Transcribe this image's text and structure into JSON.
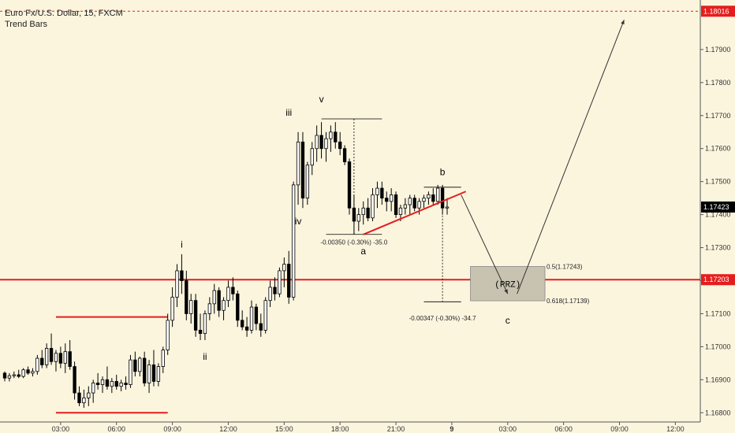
{
  "header": {
    "symbol_line": "Euro Fx/U.S. Dollar, 15, FXCM",
    "study_line": "Trend Bars"
  },
  "colors": {
    "background": "#fcf5de",
    "candle_up": "#ffffff",
    "candle_down": "#000000",
    "price_red": "#e41e1e",
    "axis_text": "#333333",
    "box_fill": "#c8c3b0",
    "current_price_bg": "#000000"
  },
  "chart_data": {
    "type": "candlestick",
    "title": "Euro Fx/U.S. Dollar, 15, FXCM",
    "study": "Trend Bars",
    "y_axis": {
      "ticks": [
        "1.16800",
        "1.16900",
        "1.17000",
        "1.17100",
        "1.17200",
        "1.17300",
        "1.17400",
        "1.17500",
        "1.17600",
        "1.17700",
        "1.17800",
        "1.17900"
      ],
      "tick_values": [
        1.168,
        1.169,
        1.17,
        1.171,
        1.172,
        1.173,
        1.174,
        1.175,
        1.176,
        1.177,
        1.178,
        1.179
      ],
      "range": [
        1.16772,
        1.1805
      ]
    },
    "x_axis": {
      "ticks": [
        "03:00",
        "06:00",
        "09:00",
        "12:00",
        "15:00",
        "18:00",
        "21:00",
        "9",
        "03:00",
        "06:00",
        "09:00",
        "12:00"
      ],
      "tick_bar_index": [
        12,
        24,
        36,
        48,
        60,
        72,
        84,
        96,
        108,
        120,
        132,
        144
      ],
      "bars_visible": 148
    },
    "price_labels": [
      {
        "text": "1.18016",
        "value": 1.18016,
        "style": "red"
      },
      {
        "text": "1.17423",
        "value": 1.17423,
        "style": "current"
      },
      {
        "text": "1.17203",
        "value": 1.17203,
        "style": "red"
      }
    ],
    "candles": [
      [
        1.1692,
        1.16925,
        1.16895,
        1.16905
      ],
      [
        1.16905,
        1.1692,
        1.16895,
        1.16912
      ],
      [
        1.16912,
        1.16925,
        1.16905,
        1.16915
      ],
      [
        1.16915,
        1.1693,
        1.16905,
        1.1691
      ],
      [
        1.1691,
        1.16935,
        1.16905,
        1.1693
      ],
      [
        1.1693,
        1.1694,
        1.16915,
        1.1692
      ],
      [
        1.1692,
        1.16935,
        1.1691,
        1.16925
      ],
      [
        1.16925,
        1.16975,
        1.16915,
        1.16965
      ],
      [
        1.16965,
        1.1699,
        1.16935,
        1.16945
      ],
      [
        1.16945,
        1.1701,
        1.16935,
        1.16995
      ],
      [
        1.16995,
        1.1704,
        1.16945,
        1.16955
      ],
      [
        1.16955,
        1.1699,
        1.16925,
        1.1698
      ],
      [
        1.1698,
        1.17,
        1.16935,
        1.1695
      ],
      [
        1.1695,
        1.1701,
        1.1692,
        1.16985
      ],
      [
        1.16985,
        1.1702,
        1.1693,
        1.1694
      ],
      [
        1.1694,
        1.16955,
        1.1684,
        1.1686
      ],
      [
        1.1686,
        1.1688,
        1.1682,
        1.1683
      ],
      [
        1.1683,
        1.1687,
        1.16815,
        1.16845
      ],
      [
        1.16845,
        1.1688,
        1.1682,
        1.1686
      ],
      [
        1.1686,
        1.169,
        1.1683,
        1.1689
      ],
      [
        1.1689,
        1.1692,
        1.1687,
        1.16885
      ],
      [
        1.16885,
        1.1691,
        1.1686,
        1.169
      ],
      [
        1.169,
        1.1694,
        1.1687,
        1.1688
      ],
      [
        1.1688,
        1.16905,
        1.1686,
        1.16895
      ],
      [
        1.16895,
        1.16915,
        1.1687,
        1.1688
      ],
      [
        1.1688,
        1.169,
        1.16865,
        1.1689
      ],
      [
        1.1689,
        1.1691,
        1.1687,
        1.16885
      ],
      [
        1.16885,
        1.16975,
        1.16875,
        1.1696
      ],
      [
        1.1696,
        1.16985,
        1.1691,
        1.16925
      ],
      [
        1.16925,
        1.1697,
        1.1691,
        1.16965
      ],
      [
        1.16965,
        1.16985,
        1.1688,
        1.1689
      ],
      [
        1.1689,
        1.1696,
        1.1686,
        1.16945
      ],
      [
        1.16945,
        1.1699,
        1.1688,
        1.16895
      ],
      [
        1.16895,
        1.1695,
        1.1688,
        1.1694
      ],
      [
        1.1694,
        1.17,
        1.1692,
        1.1699
      ],
      [
        1.1699,
        1.171,
        1.16975,
        1.1708
      ],
      [
        1.1708,
        1.1718,
        1.1706,
        1.1715
      ],
      [
        1.1715,
        1.1725,
        1.1712,
        1.1723
      ],
      [
        1.1723,
        1.1728,
        1.1716,
        1.172
      ],
      [
        1.172,
        1.1723,
        1.1708,
        1.171
      ],
      [
        1.171,
        1.1716,
        1.1707,
        1.1714
      ],
      [
        1.1714,
        1.1716,
        1.1703,
        1.1705
      ],
      [
        1.1705,
        1.171,
        1.1702,
        1.1704
      ],
      [
        1.1704,
        1.1711,
        1.1702,
        1.171
      ],
      [
        1.171,
        1.1715,
        1.1708,
        1.1713
      ],
      [
        1.1713,
        1.1719,
        1.171,
        1.1717
      ],
      [
        1.1717,
        1.1718,
        1.1709,
        1.1711
      ],
      [
        1.1711,
        1.1715,
        1.1708,
        1.1714
      ],
      [
        1.1714,
        1.172,
        1.1712,
        1.1718
      ],
      [
        1.1718,
        1.1721,
        1.1714,
        1.1716
      ],
      [
        1.1716,
        1.1717,
        1.1706,
        1.1708
      ],
      [
        1.1708,
        1.1711,
        1.1705,
        1.1706
      ],
      [
        1.1706,
        1.1709,
        1.1703,
        1.1705
      ],
      [
        1.1705,
        1.1714,
        1.1704,
        1.1712
      ],
      [
        1.1712,
        1.1713,
        1.1705,
        1.1707
      ],
      [
        1.1707,
        1.171,
        1.1703,
        1.1705
      ],
      [
        1.1705,
        1.1715,
        1.1704,
        1.1714
      ],
      [
        1.1714,
        1.172,
        1.1712,
        1.1718
      ],
      [
        1.1718,
        1.1721,
        1.1714,
        1.1716
      ],
      [
        1.1716,
        1.1724,
        1.1715,
        1.1723
      ],
      [
        1.1723,
        1.1727,
        1.1718,
        1.1725
      ],
      [
        1.1725,
        1.1729,
        1.1713,
        1.1715
      ],
      [
        1.1715,
        1.175,
        1.1714,
        1.1749
      ],
      [
        1.1749,
        1.1765,
        1.1743,
        1.1762
      ],
      [
        1.1762,
        1.1765,
        1.1742,
        1.1745
      ],
      [
        1.1745,
        1.1756,
        1.1743,
        1.1755
      ],
      [
        1.1755,
        1.1762,
        1.1752,
        1.176
      ],
      [
        1.176,
        1.1767,
        1.1756,
        1.1764
      ],
      [
        1.1764,
        1.1768,
        1.1757,
        1.176
      ],
      [
        1.176,
        1.1765,
        1.1756,
        1.1763
      ],
      [
        1.1763,
        1.1767,
        1.1759,
        1.1765
      ],
      [
        1.1765,
        1.1768,
        1.176,
        1.1762
      ],
      [
        1.1762,
        1.1765,
        1.1758,
        1.176
      ],
      [
        1.176,
        1.1761,
        1.1755,
        1.1756
      ],
      [
        1.1756,
        1.1757,
        1.174,
        1.1742
      ],
      [
        1.1742,
        1.1746,
        1.1734,
        1.1738
      ],
      [
        1.1738,
        1.1742,
        1.1735,
        1.174
      ],
      [
        1.174,
        1.1744,
        1.1737,
        1.1742
      ],
      [
        1.1742,
        1.1745,
        1.1738,
        1.1739
      ],
      [
        1.1739,
        1.1748,
        1.1738,
        1.1746
      ],
      [
        1.1746,
        1.175,
        1.1742,
        1.1748
      ],
      [
        1.1748,
        1.175,
        1.1743,
        1.1745
      ],
      [
        1.1745,
        1.1747,
        1.1741,
        1.1744
      ],
      [
        1.1744,
        1.1748,
        1.1741,
        1.1746
      ],
      [
        1.1746,
        1.1747,
        1.1739,
        1.174
      ],
      [
        1.174,
        1.1743,
        1.1738,
        1.1742
      ],
      [
        1.1742,
        1.1745,
        1.174,
        1.1743
      ],
      [
        1.1743,
        1.1746,
        1.174,
        1.1745
      ],
      [
        1.1745,
        1.1746,
        1.1741,
        1.1742
      ],
      [
        1.1742,
        1.1745,
        1.174,
        1.1744
      ],
      [
        1.1744,
        1.1746,
        1.1742,
        1.1745
      ],
      [
        1.1745,
        1.1747,
        1.1743,
        1.1746
      ],
      [
        1.1746,
        1.1748,
        1.1743,
        1.1744
      ],
      [
        1.1744,
        1.1749,
        1.1743,
        1.1748
      ],
      [
        1.1748,
        1.1749,
        1.174,
        1.1742
      ],
      [
        1.1742,
        1.1745,
        1.174,
        1.17423
      ]
    ],
    "annotations": {
      "wave_labels": [
        "i",
        "ii",
        "iii",
        "iv",
        "v",
        "a",
        "b",
        "c"
      ],
      "measure_1": "-0.00350 (-0.30%) -35.0",
      "measure_2": "-0.00347 (-0.30%) -34.7",
      "prz_label": "(PRZ)",
      "fib_05": "0.5(1.17243)",
      "fib_0618": "0.618(1.17139)",
      "fib_05_value": 1.17243,
      "fib_0618_value": 1.17139,
      "support_level": 1.17203,
      "target_level": 1.18016,
      "lower_line_1": 1.168,
      "lower_line_2": 1.1709
    }
  }
}
